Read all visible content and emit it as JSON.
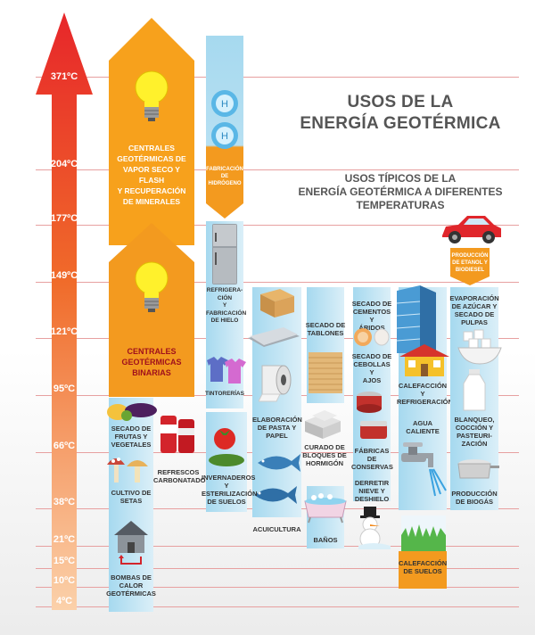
{
  "title": {
    "line1": "USOS DE LA",
    "line2": "ENERGÍA GEOTÉRMICA"
  },
  "subtitle": {
    "line1": "USOS TÍPICOS DE LA",
    "line2": "ENERGÍA GEOTÉRMICA A DIFERENTES",
    "line3": "TEMPERATURAS"
  },
  "temperatures": [
    "371ºC",
    "204ºC",
    "177ºC",
    "149ºC",
    "121ºC",
    "95ºC",
    "66ºC",
    "38ºC",
    "21ºC",
    "15ºC",
    "10ºC",
    "4ºC"
  ],
  "uses": {
    "vapor": {
      "l1": "CENTRALES",
      "l2": "GEOTÉRMICAS DE",
      "l3": "VAPOR SECO Y",
      "l4": "FLASH",
      "l5": "Y RECUPERACIÓN",
      "l6": "DE MINERALES"
    },
    "binarias": {
      "l1": "CENTRALES",
      "l2": "GEOTÉRMICAS",
      "l3": "BINARIAS"
    },
    "hidrogeno": {
      "l1": "FABRICACIÓN",
      "l2": "DE",
      "l3": "HIDRÓGENO"
    },
    "hydrogen_symbol": "H",
    "etanol": {
      "l1": "PRODUCCIÓN",
      "l2": "DE ETANOL Y",
      "l3": "BIODIESEL"
    },
    "refrigeracion": {
      "l1": "REFRIGERA-",
      "l2": "CIÓN",
      "l3": "Y",
      "l4": "FABRICACIÓN",
      "l5": "DE HIELO"
    },
    "tintorerias": "TINTORERÍAS",
    "pasta": {
      "l1": "ELABORACIÓN",
      "l2": "DE PASTA Y",
      "l3": "PAPEL"
    },
    "tablones": {
      "l1": "SECADO DE",
      "l2": "TABLONES"
    },
    "cementos": {
      "l1": "SECADO DE",
      "l2": "CEMENTOS Y",
      "l3": "ÁRIDOS"
    },
    "cebollas": {
      "l1": "SECADO DE",
      "l2": "CEBOLLAS Y",
      "l3": "AJOS"
    },
    "azucar": {
      "l1": "EVAPORACIÓN",
      "l2": "DE AZÚCAR Y",
      "l3": "SECADO DE",
      "l4": "PULPAS"
    },
    "calefaccion": {
      "l1": "CALEFACCIÓN",
      "l2": "Y",
      "l3": "REFRIGERACIÓN"
    },
    "agua": {
      "l1": "AGUA",
      "l2": "CALIENTE"
    },
    "blanqueo": {
      "l1": "BLANQUEO,",
      "l2": "COCCIÓN Y",
      "l3": "PASTEURI-",
      "l4": "ZACIÓN"
    },
    "frutas": {
      "l1": "SECADO DE",
      "l2": "FRUTAS Y",
      "l3": "VEGETALES"
    },
    "setas": {
      "l1": "CULTIVO DE",
      "l2": "SETAS"
    },
    "refrescos": {
      "l1": "REFRESCOS",
      "l2": "CARBONATADOS"
    },
    "invernaderos": {
      "l1": "INVERNADEROS",
      "l2": "Y",
      "l3": "ESTERILIZACIÓN",
      "l4": "DE SUELOS"
    },
    "acuicultura": "ACUICULTURA",
    "hormigon": {
      "l1": "CURADO DE",
      "l2": "BLOQUES DE",
      "l3": "HORMIGÓN"
    },
    "banos": "BAÑOS",
    "conservas": {
      "l1": "FÁBRICAS DE",
      "l2": "CONSERVAS"
    },
    "deshielo": {
      "l1": "DERRETIR",
      "l2": "NIEVE Y",
      "l3": "DESHIELO"
    },
    "biogas": {
      "l1": "PRODUCCIÓN",
      "l2": "DE BIOGÁS"
    },
    "suelos": {
      "l1": "CALEFACCIÓN",
      "l2": "DE SUELOS"
    },
    "bombas": {
      "l1": "BOMBAS DE",
      "l2": "CALOR",
      "l3": "GEOTÉRMICAS"
    }
  },
  "colors": {
    "arrow_top": "#e7262a",
    "arrow_bottom": "#fbc79a",
    "orange": "#f39a1f",
    "blue": "#a6d9ef",
    "rule": "#e7a0a0"
  }
}
